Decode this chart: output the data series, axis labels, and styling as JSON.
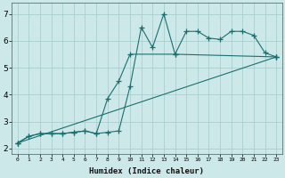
{
  "xlabel": "Humidex (Indice chaleur)",
  "bg_color": "#cce8e8",
  "line_color": "#1a7070",
  "grid_color": "#aacece",
  "xlim": [
    -0.5,
    23.5
  ],
  "ylim": [
    1.8,
    7.4
  ],
  "xticks": [
    0,
    1,
    2,
    3,
    4,
    5,
    6,
    7,
    8,
    9,
    10,
    11,
    12,
    13,
    14,
    15,
    16,
    17,
    18,
    19,
    20,
    21,
    22,
    23
  ],
  "yticks": [
    2,
    3,
    4,
    5,
    6,
    7
  ],
  "series1_x": [
    0,
    1,
    2,
    3,
    4,
    5,
    6,
    7,
    8,
    9,
    10,
    11,
    12,
    13,
    14,
    15,
    16,
    17,
    18,
    19,
    20,
    21,
    22,
    23
  ],
  "series1_y": [
    2.2,
    2.45,
    2.55,
    2.55,
    2.55,
    2.6,
    2.65,
    2.55,
    2.6,
    2.65,
    4.3,
    6.5,
    5.75,
    7.0,
    5.5,
    6.35,
    6.35,
    6.1,
    6.05,
    6.35,
    6.35,
    6.2,
    5.55,
    5.4
  ],
  "series2_x": [
    0,
    1,
    2,
    3,
    4,
    5,
    6,
    7,
    8,
    9,
    10,
    14,
    23
  ],
  "series2_y": [
    2.2,
    2.45,
    2.55,
    2.55,
    2.55,
    2.6,
    2.65,
    2.55,
    3.85,
    4.5,
    5.5,
    5.5,
    5.4
  ],
  "series3_x": [
    0,
    23
  ],
  "series3_y": [
    2.2,
    5.4
  ],
  "marker": "+",
  "markersize": 4,
  "linewidth": 0.8
}
